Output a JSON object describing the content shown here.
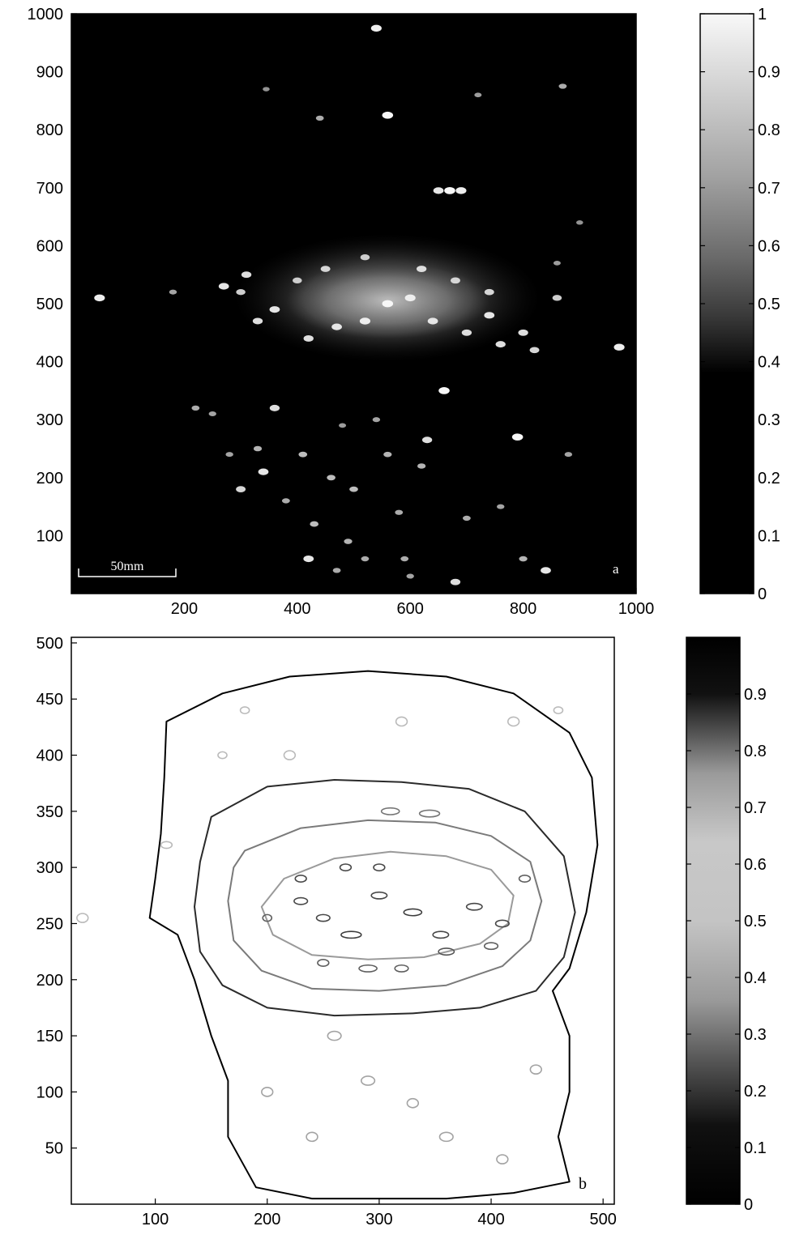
{
  "chart_data": [
    {
      "id": "a",
      "type": "heatmap",
      "panel_label": "a",
      "colormap": "gray",
      "x_ticks": [
        200,
        400,
        600,
        800,
        1000
      ],
      "y_ticks": [
        100,
        200,
        300,
        400,
        500,
        600,
        700,
        800,
        900,
        1000
      ],
      "xlim": [
        0,
        1000
      ],
      "ylim": [
        0,
        1000
      ],
      "scale_bar": {
        "label": "50mm",
        "length": 170
      },
      "colorbar": {
        "ticks": [
          0,
          0.1,
          0.2,
          0.3,
          0.4,
          0.5,
          0.6,
          0.7,
          0.8,
          0.9,
          1
        ],
        "range": [
          0,
          1
        ],
        "dark_at": 0,
        "light_at": 1
      },
      "regions": [
        {
          "kind": "ellipse",
          "cx": 560,
          "cy": 510,
          "rx": 270,
          "ry": 110,
          "intensity": 0.55
        },
        {
          "kind": "ellipse",
          "cx": 560,
          "cy": 505,
          "rx": 180,
          "ry": 65,
          "intensity": 0.8
        }
      ],
      "spots": [
        [
          540,
          975,
          0.9
        ],
        [
          560,
          825,
          0.95
        ],
        [
          670,
          695,
          0.95
        ],
        [
          690,
          695,
          0.9
        ],
        [
          650,
          695,
          0.85
        ],
        [
          440,
          820,
          0.5
        ],
        [
          870,
          875,
          0.5
        ],
        [
          720,
          860,
          0.4
        ],
        [
          345,
          870,
          0.35
        ],
        [
          50,
          510,
          0.9
        ],
        [
          970,
          425,
          0.9
        ],
        [
          270,
          530,
          0.85
        ],
        [
          310,
          550,
          0.8
        ],
        [
          300,
          520,
          0.7
        ],
        [
          330,
          470,
          0.8
        ],
        [
          360,
          490,
          0.85
        ],
        [
          420,
          440,
          0.8
        ],
        [
          470,
          460,
          0.85
        ],
        [
          520,
          470,
          0.9
        ],
        [
          560,
          500,
          0.95
        ],
        [
          600,
          510,
          0.9
        ],
        [
          640,
          470,
          0.85
        ],
        [
          700,
          450,
          0.8
        ],
        [
          740,
          480,
          0.85
        ],
        [
          760,
          430,
          0.8
        ],
        [
          800,
          450,
          0.8
        ],
        [
          820,
          420,
          0.75
        ],
        [
          860,
          510,
          0.7
        ],
        [
          620,
          560,
          0.8
        ],
        [
          520,
          580,
          0.7
        ],
        [
          450,
          560,
          0.75
        ],
        [
          400,
          540,
          0.7
        ],
        [
          680,
          540,
          0.75
        ],
        [
          740,
          520,
          0.75
        ],
        [
          660,
          350,
          0.95
        ],
        [
          790,
          270,
          0.95
        ],
        [
          630,
          265,
          0.8
        ],
        [
          220,
          320,
          0.5
        ],
        [
          360,
          320,
          0.8
        ],
        [
          340,
          210,
          0.85
        ],
        [
          300,
          180,
          0.75
        ],
        [
          330,
          250,
          0.55
        ],
        [
          410,
          240,
          0.6
        ],
        [
          460,
          200,
          0.6
        ],
        [
          500,
          180,
          0.6
        ],
        [
          560,
          240,
          0.55
        ],
        [
          580,
          140,
          0.5
        ],
        [
          620,
          220,
          0.55
        ],
        [
          700,
          130,
          0.5
        ],
        [
          430,
          120,
          0.6
        ],
        [
          490,
          90,
          0.55
        ],
        [
          520,
          60,
          0.5
        ],
        [
          470,
          40,
          0.5
        ],
        [
          590,
          60,
          0.5
        ],
        [
          680,
          20,
          0.8
        ],
        [
          600,
          30,
          0.45
        ],
        [
          420,
          60,
          0.85
        ],
        [
          800,
          60,
          0.55
        ],
        [
          840,
          40,
          0.85
        ],
        [
          880,
          240,
          0.45
        ],
        [
          760,
          150,
          0.45
        ],
        [
          280,
          240,
          0.45
        ],
        [
          380,
          160,
          0.5
        ],
        [
          540,
          300,
          0.45
        ],
        [
          480,
          290,
          0.4
        ],
        [
          250,
          310,
          0.45
        ],
        [
          900,
          640,
          0.35
        ],
        [
          860,
          570,
          0.4
        ],
        [
          180,
          520,
          0.45
        ]
      ]
    },
    {
      "id": "b",
      "type": "heatmap",
      "panel_label": "b",
      "render": "contour",
      "colormap": "gray-reversed",
      "x_ticks": [
        100,
        200,
        300,
        400,
        500
      ],
      "y_ticks": [
        50,
        100,
        150,
        200,
        250,
        300,
        350,
        400,
        450,
        500
      ],
      "xlim": [
        25,
        510
      ],
      "ylim": [
        0,
        505
      ],
      "colorbar": {
        "ticks": [
          0,
          0.1,
          0.2,
          0.3,
          0.4,
          0.5,
          0.6,
          0.7,
          0.8,
          0.9
        ],
        "range": [
          0,
          1
        ],
        "dark_at": 1,
        "light_at": 0
      },
      "contours": [
        {
          "level": 0.1,
          "color": "#000000",
          "points": [
            [
              110,
              430
            ],
            [
              160,
              455
            ],
            [
              220,
              470
            ],
            [
              290,
              475
            ],
            [
              360,
              470
            ],
            [
              420,
              455
            ],
            [
              470,
              420
            ],
            [
              490,
              380
            ],
            [
              495,
              320
            ],
            [
              485,
              260
            ],
            [
              470,
              210
            ],
            [
              455,
              190
            ],
            [
              470,
              150
            ],
            [
              470,
              100
            ],
            [
              460,
              60
            ],
            [
              470,
              20
            ],
            [
              420,
              10
            ],
            [
              360,
              5
            ],
            [
              300,
              5
            ],
            [
              240,
              5
            ],
            [
              190,
              15
            ],
            [
              165,
              60
            ],
            [
              165,
              110
            ],
            [
              150,
              150
            ],
            [
              135,
              200
            ],
            [
              120,
              240
            ],
            [
              95,
              255
            ],
            [
              100,
              290
            ],
            [
              105,
              330
            ],
            [
              108,
              380
            ]
          ]
        },
        {
          "level": 0.2,
          "color": "#2a2a2a",
          "points": [
            [
              150,
              345
            ],
            [
              200,
              372
            ],
            [
              260,
              378
            ],
            [
              320,
              376
            ],
            [
              380,
              370
            ],
            [
              430,
              350
            ],
            [
              465,
              310
            ],
            [
              475,
              260
            ],
            [
              465,
              220
            ],
            [
              440,
              190
            ],
            [
              390,
              175
            ],
            [
              330,
              170
            ],
            [
              260,
              168
            ],
            [
              200,
              175
            ],
            [
              160,
              195
            ],
            [
              140,
              225
            ],
            [
              135,
              265
            ],
            [
              140,
              305
            ]
          ]
        },
        {
          "level": 0.3,
          "color": "#7a7a7a",
          "points": [
            [
              180,
              315
            ],
            [
              230,
              335
            ],
            [
              290,
              342
            ],
            [
              350,
              340
            ],
            [
              400,
              328
            ],
            [
              435,
              305
            ],
            [
              445,
              270
            ],
            [
              435,
              235
            ],
            [
              410,
              212
            ],
            [
              360,
              195
            ],
            [
              300,
              190
            ],
            [
              240,
              192
            ],
            [
              195,
              208
            ],
            [
              170,
              235
            ],
            [
              165,
              270
            ],
            [
              170,
              300
            ]
          ]
        },
        {
          "level": 0.5,
          "color": "#9a9a9a",
          "points": [
            [
              215,
              290
            ],
            [
              260,
              308
            ],
            [
              310,
              314
            ],
            [
              360,
              310
            ],
            [
              400,
              298
            ],
            [
              420,
              275
            ],
            [
              415,
              250
            ],
            [
              390,
              232
            ],
            [
              340,
              220
            ],
            [
              290,
              218
            ],
            [
              240,
              222
            ],
            [
              205,
              240
            ],
            [
              195,
              265
            ]
          ]
        }
      ],
      "blobs": [
        [
          230,
          270,
          6,
          3,
          0.8
        ],
        [
          250,
          255,
          6,
          3,
          0.8
        ],
        [
          275,
          240,
          9,
          3,
          0.85
        ],
        [
          300,
          275,
          7,
          3,
          0.8
        ],
        [
          330,
          260,
          8,
          3,
          0.85
        ],
        [
          355,
          240,
          7,
          3,
          0.8
        ],
        [
          385,
          265,
          7,
          3,
          0.8
        ],
        [
          410,
          250,
          6,
          3,
          0.8
        ],
        [
          290,
          210,
          8,
          3,
          0.7
        ],
        [
          320,
          210,
          6,
          3,
          0.7
        ],
        [
          360,
          225,
          7,
          3,
          0.75
        ],
        [
          400,
          230,
          6,
          3,
          0.7
        ],
        [
          310,
          350,
          8,
          3,
          0.6
        ],
        [
          345,
          348,
          9,
          3,
          0.6
        ],
        [
          270,
          300,
          5,
          3,
          0.8
        ],
        [
          300,
          300,
          5,
          3,
          0.8
        ],
        [
          230,
          290,
          5,
          3,
          0.8
        ],
        [
          250,
          215,
          5,
          3,
          0.7
        ],
        [
          430,
          290,
          5,
          3,
          0.7
        ],
        [
          200,
          255,
          4,
          3,
          0.7
        ],
        [
          290,
          110,
          6,
          4,
          0.4
        ],
        [
          330,
          90,
          5,
          4,
          0.4
        ],
        [
          360,
          60,
          6,
          4,
          0.4
        ],
        [
          410,
          40,
          5,
          4,
          0.4
        ],
        [
          240,
          60,
          5,
          4,
          0.4
        ],
        [
          200,
          100,
          5,
          4,
          0.4
        ],
        [
          440,
          120,
          5,
          4,
          0.4
        ],
        [
          260,
          150,
          6,
          4,
          0.4
        ],
        [
          220,
          400,
          5,
          4,
          0.3
        ],
        [
          320,
          430,
          5,
          4,
          0.3
        ],
        [
          420,
          430,
          5,
          4,
          0.3
        ],
        [
          180,
          440,
          4,
          3,
          0.3
        ],
        [
          460,
          440,
          4,
          3,
          0.3
        ],
        [
          110,
          320,
          5,
          3,
          0.3
        ],
        [
          35,
          255,
          5,
          4,
          0.3
        ],
        [
          160,
          400,
          4,
          3,
          0.3
        ]
      ]
    }
  ]
}
